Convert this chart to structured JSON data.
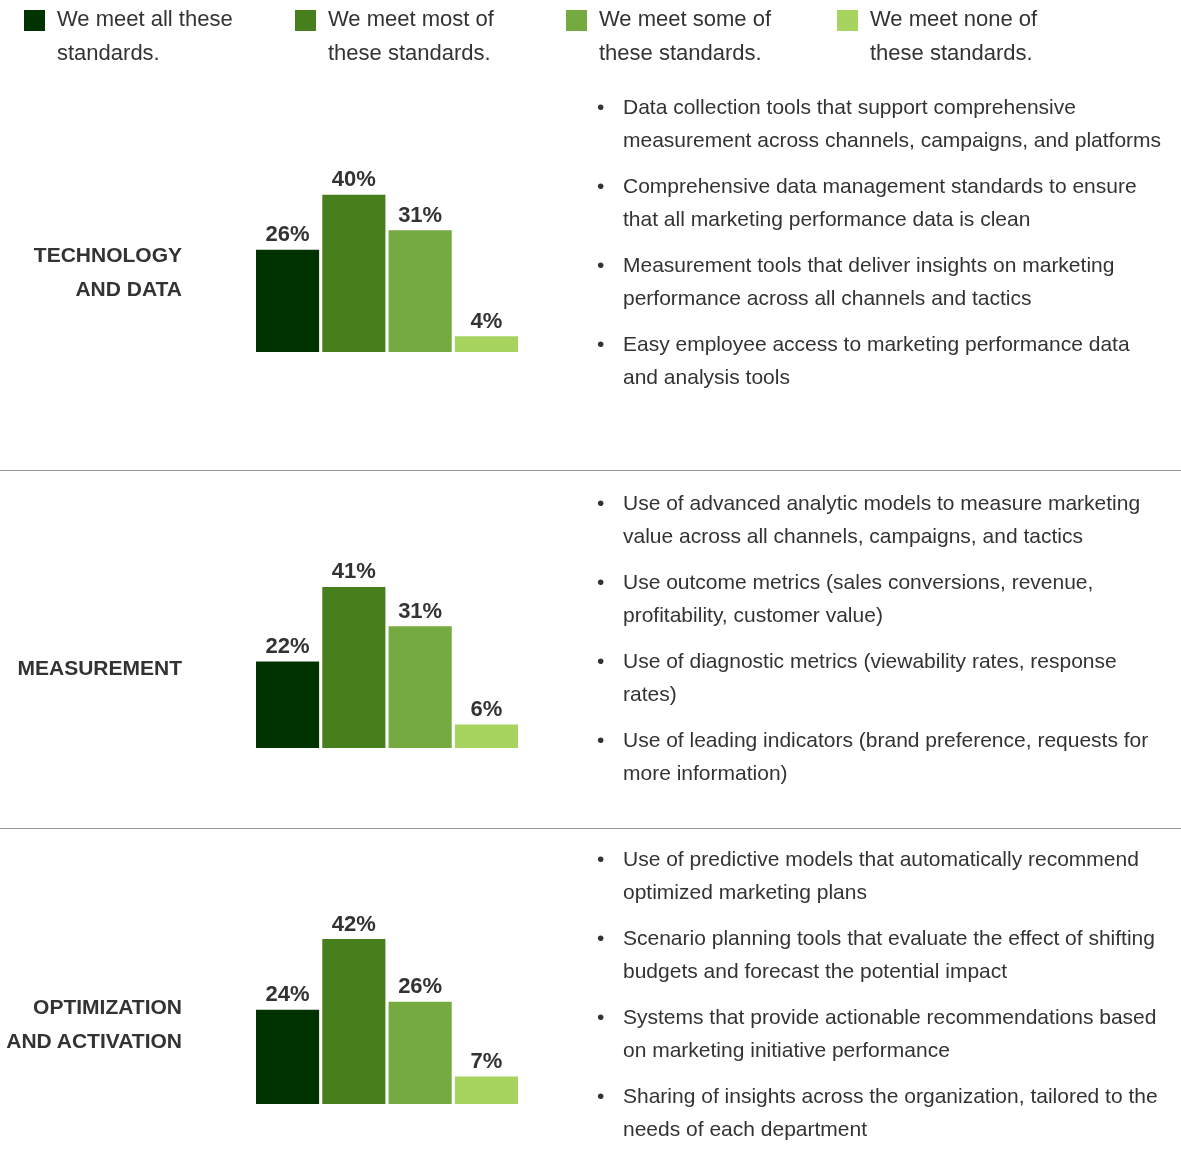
{
  "chart_data": [
    {
      "type": "bar",
      "title": "TECHNOLOGY AND DATA",
      "categories": [
        null
      ],
      "legend": "top",
      "data_labels": true,
      "series": [
        {
          "name": "We meet all these standards.",
          "color": "#003300",
          "values": [
            26
          ],
          "value_labels": [
            "26%"
          ]
        },
        {
          "name": "We meet most of these standards.",
          "color": "#467f1c",
          "values": [
            40
          ],
          "value_labels": [
            "40%"
          ]
        },
        {
          "name": "We meet some of these standards.",
          "color": "#74aa3f",
          "values": [
            31
          ],
          "value_labels": [
            "31%"
          ]
        },
        {
          "name": "We meet none of these standards.",
          "color": "#a6d45f",
          "values": [
            4
          ],
          "value_labels": [
            "4%"
          ]
        }
      ],
      "annotations": [
        "• Data collection tools that support comprehensive measurement across channels, campaigns, and platforms",
        "• Comprehensive data management standards to ensure that all marketing performance data is clean",
        "• Measurement tools that deliver insights on marketing performance across all channels and tactics",
        "• Easy employee access to marketing performance data and analysis tools"
      ]
    },
    {
      "type": "bar",
      "title": "MEASUREMENT",
      "categories": [
        null
      ],
      "data_labels": true,
      "series": [
        {
          "color": "#003300",
          "values": [
            22
          ],
          "value_labels": [
            "22%"
          ]
        },
        {
          "color": "#467f1c",
          "values": [
            41
          ],
          "value_labels": [
            "41%"
          ]
        },
        {
          "color": "#74aa3f",
          "values": [
            31
          ],
          "value_labels": [
            "31%"
          ]
        },
        {
          "color": "#a6d45f",
          "values": [
            6
          ],
          "value_labels": [
            "6%"
          ]
        }
      ],
      "annotations": [
        "• Use of advanced analytic models to measure marketing value across all channels, campaigns, and tactics",
        "• Use outcome metrics (sales conversions, revenue, profitability, customer value)",
        "• Use of diagnostic metrics (viewability rates, response rates)",
        "• Use of leading indicators (brand preference, requests for more information)"
      ]
    },
    {
      "type": "bar",
      "title": "OPTIMIZATION AND ACTIVATION",
      "categories": [
        null
      ],
      "data_labels": true,
      "series": [
        {
          "color": "#003300",
          "values": [
            24
          ],
          "value_labels": [
            "24%"
          ]
        },
        {
          "color": "#467f1c",
          "values": [
            42
          ],
          "value_labels": [
            "42%"
          ]
        },
        {
          "color": "#74aa3f",
          "values": [
            26
          ],
          "value_labels": [
            "26%"
          ]
        },
        {
          "color": "#a6d45f",
          "values": [
            7
          ],
          "value_labels": [
            "7%"
          ]
        }
      ],
      "annotations": [
        "• Use of predictive models that automatically recommend optimized marketing plans",
        "• Scenario planning tools that evaluate the effect of shifting budgets and forecast the potential impact",
        "• Systems that provide actionable recommendations based on marketing initiative performance",
        "• Sharing of insights across the organization, tailored to the needs of each department"
      ]
    }
  ]
}
